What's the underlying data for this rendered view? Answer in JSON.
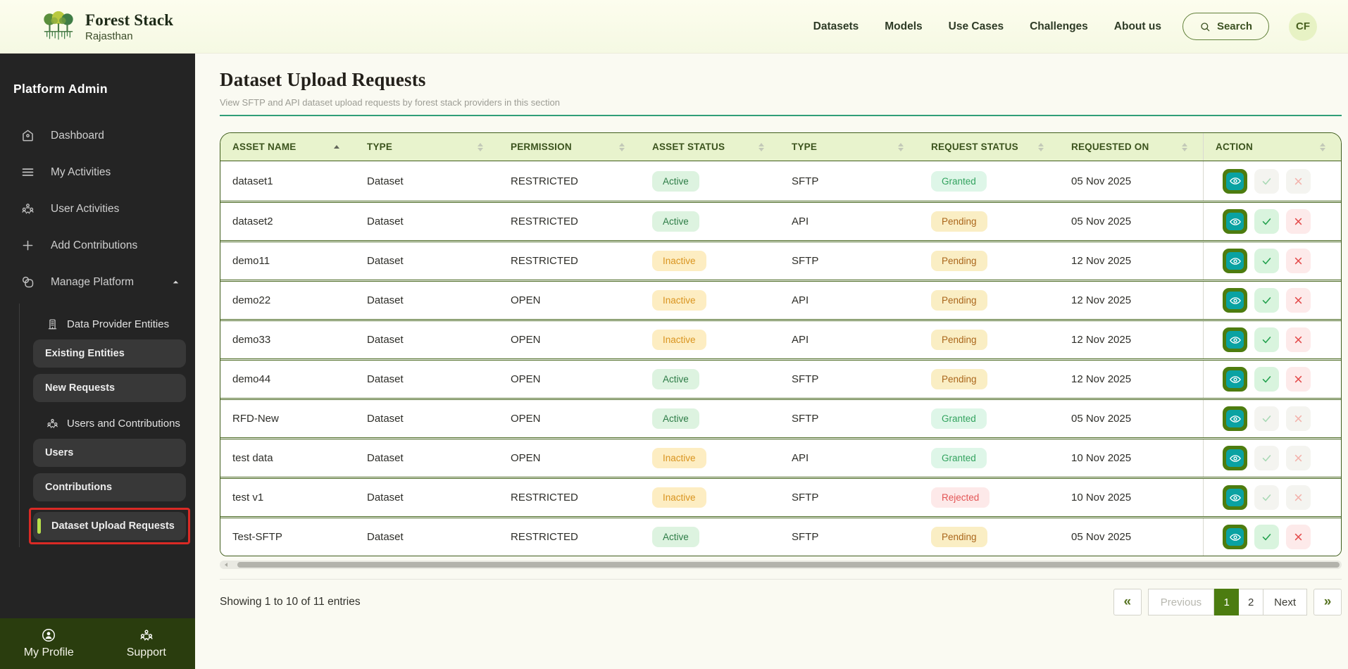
{
  "header": {
    "brand": {
      "title": "Forest Stack",
      "subtitle": "Rajasthan"
    },
    "nav": [
      "Datasets",
      "Models",
      "Use Cases",
      "Challenges",
      "About us"
    ],
    "search_label": "Search",
    "avatar_initials": "CF"
  },
  "sidebar": {
    "title": "Platform Admin",
    "items": [
      {
        "label": "Dashboard",
        "icon": "home-icon"
      },
      {
        "label": "My Activities",
        "icon": "menu-icon"
      },
      {
        "label": "User Activities",
        "icon": "users-icon"
      },
      {
        "label": "Add Contributions",
        "icon": "plus-icon"
      },
      {
        "label": "Manage Platform",
        "icon": "platform-icon",
        "expanded": true
      }
    ],
    "submenu": {
      "groups": [
        {
          "label": "Data Provider Entities",
          "icon": "building-icon",
          "items": [
            "Existing Entities",
            "New Requests"
          ]
        },
        {
          "label": "Users and Contributions",
          "icon": "users-icon",
          "items": [
            "Users",
            "Contributions",
            "Dataset Upload Requests"
          ]
        }
      ],
      "active_item": "Dataset Upload Requests"
    },
    "footer": [
      {
        "label": "My Profile"
      },
      {
        "label": "Support"
      }
    ]
  },
  "main": {
    "title": "Dataset Upload Requests",
    "subtitle": "View SFTP and API dataset upload requests by forest stack providers in this section",
    "table": {
      "columns": [
        {
          "label": "ASSET NAME",
          "sort": "asc"
        },
        {
          "label": "TYPE"
        },
        {
          "label": "PERMISSION"
        },
        {
          "label": "ASSET STATUS"
        },
        {
          "label": "TYPE"
        },
        {
          "label": "REQUEST STATUS"
        },
        {
          "label": "REQUESTED ON"
        },
        {
          "label": "ACTION"
        }
      ],
      "rows": [
        {
          "asset_name": "dataset1",
          "type": "Dataset",
          "permission": "RESTRICTED",
          "asset_status": "Active",
          "upload_type": "SFTP",
          "request_status": "Granted",
          "requested_on": "05 Nov 2025",
          "actions_enabled": false
        },
        {
          "asset_name": "dataset2",
          "type": "Dataset",
          "permission": "RESTRICTED",
          "asset_status": "Active",
          "upload_type": "API",
          "request_status": "Pending",
          "requested_on": "05 Nov 2025",
          "actions_enabled": true
        },
        {
          "asset_name": "demo11",
          "type": "Dataset",
          "permission": "RESTRICTED",
          "asset_status": "Inactive",
          "upload_type": "SFTP",
          "request_status": "Pending",
          "requested_on": "12 Nov 2025",
          "actions_enabled": true
        },
        {
          "asset_name": "demo22",
          "type": "Dataset",
          "permission": "OPEN",
          "asset_status": "Inactive",
          "upload_type": "API",
          "request_status": "Pending",
          "requested_on": "12 Nov 2025",
          "actions_enabled": true
        },
        {
          "asset_name": "demo33",
          "type": "Dataset",
          "permission": "OPEN",
          "asset_status": "Inactive",
          "upload_type": "API",
          "request_status": "Pending",
          "requested_on": "12 Nov 2025",
          "actions_enabled": true
        },
        {
          "asset_name": "demo44",
          "type": "Dataset",
          "permission": "OPEN",
          "asset_status": "Active",
          "upload_type": "SFTP",
          "request_status": "Pending",
          "requested_on": "12 Nov 2025",
          "actions_enabled": true
        },
        {
          "asset_name": "RFD-New",
          "type": "Dataset",
          "permission": "OPEN",
          "asset_status": "Active",
          "upload_type": "SFTP",
          "request_status": "Granted",
          "requested_on": "05 Nov 2025",
          "actions_enabled": false
        },
        {
          "asset_name": "test data",
          "type": "Dataset",
          "permission": "OPEN",
          "asset_status": "Inactive",
          "upload_type": "API",
          "request_status": "Granted",
          "requested_on": "10 Nov 2025",
          "actions_enabled": false
        },
        {
          "asset_name": "test v1",
          "type": "Dataset",
          "permission": "RESTRICTED",
          "asset_status": "Inactive",
          "upload_type": "SFTP",
          "request_status": "Rejected",
          "requested_on": "10 Nov 2025",
          "actions_enabled": false
        },
        {
          "asset_name": "Test-SFTP",
          "type": "Dataset",
          "permission": "RESTRICTED",
          "asset_status": "Active",
          "upload_type": "SFTP",
          "request_status": "Pending",
          "requested_on": "05 Nov 2025",
          "actions_enabled": true
        }
      ]
    },
    "footer": {
      "showing_text": "Showing 1 to 10 of 11 entries",
      "pagination": {
        "first_icon": "«",
        "previous_label": "Previous",
        "pages": [
          "1",
          "2"
        ],
        "active_page": "1",
        "next_label": "Next",
        "last_icon": "»"
      }
    }
  },
  "colors": {
    "topbar_bg": "#fbfce9",
    "sidebar_bg": "#242424",
    "sidebar_footer_bg": "#2a3d0e",
    "active_item_accent": "#b7df4b",
    "annotation_red": "#da2a25",
    "title_rule": "#2f9e78",
    "table_border": "#3f5c1b",
    "table_header_bg": "#e8f3cd",
    "view_button_bg": "#4d7c0f",
    "view_button_inner": "#0aa2a2",
    "pagination_active_bg": "#4c7c10",
    "status_colors": {
      "Active": {
        "bg": "#ddf3e0",
        "fg": "#2d7c46"
      },
      "Inactive": {
        "bg": "#fdedc2",
        "fg": "#d9941f"
      },
      "Granted": {
        "bg": "#def6e8",
        "fg": "#33a35f"
      },
      "Pending": {
        "bg": "#faeec4",
        "fg": "#aa661b"
      },
      "Rejected": {
        "bg": "#fde9e9",
        "fg": "#e35555"
      }
    }
  }
}
